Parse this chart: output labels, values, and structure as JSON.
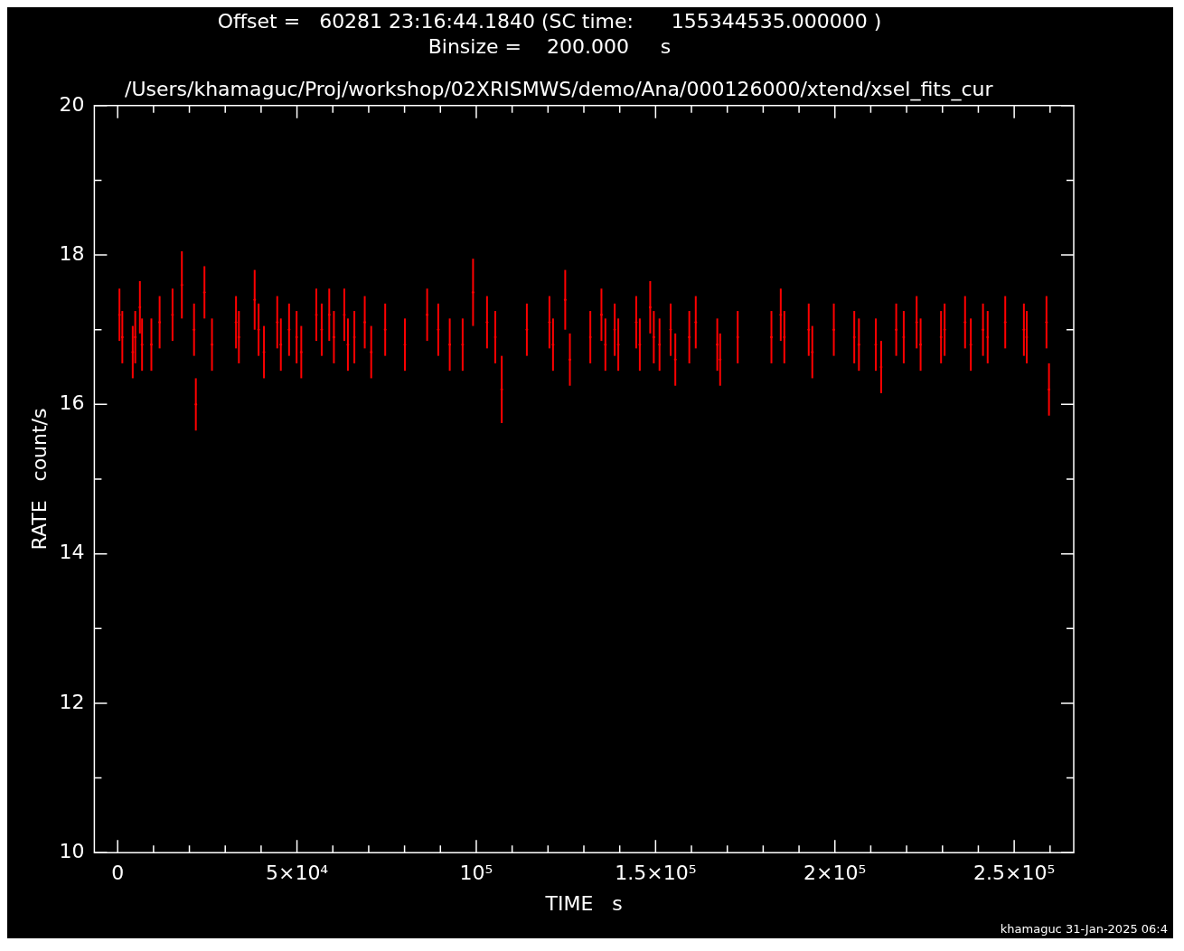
{
  "chart_data": {
    "type": "scatter",
    "title": "Offset =   60281 23:16:44.1840 (SC time:      155344535.000000 )",
    "subtitle": "Binsize =    200.000     s",
    "xlabel": "TIME   s",
    "ylabel": "RATE   count/s",
    "annotations": [
      "/Users/khamaguc/Proj/workshop/02XRISMWS/demo/Ana/000126000/xtend/xsel_fits_cur",
      "khamaguc 31-Jan-2025 06:4"
    ],
    "xlim": [
      -6500,
      266600
    ],
    "ylim": [
      10,
      20
    ],
    "xticks": [
      0,
      {
        "value": 10000,
        "label": null
      },
      {
        "value": 20000,
        "label": null
      },
      {
        "value": 30000,
        "label": null
      },
      {
        "value": 40000,
        "label": null
      },
      {
        "value": 50000,
        "label": "5×10⁴"
      },
      {
        "value": 60000,
        "label": null
      },
      {
        "value": 70000,
        "label": null
      },
      {
        "value": 80000,
        "label": null
      },
      {
        "value": 90000,
        "label": null
      },
      {
        "value": 100000,
        "label": "10⁵"
      },
      {
        "value": 110000,
        "label": null
      },
      {
        "value": 120000,
        "label": null
      },
      {
        "value": 130000,
        "label": null
      },
      {
        "value": 140000,
        "label": null
      },
      {
        "value": 150000,
        "label": "1.5×10⁵"
      },
      {
        "value": 160000,
        "label": null
      },
      {
        "value": 170000,
        "label": null
      },
      {
        "value": 180000,
        "label": null
      },
      {
        "value": 190000,
        "label": null
      },
      {
        "value": 200000,
        "label": "2×10⁵"
      },
      {
        "value": 210000,
        "label": null
      },
      {
        "value": 220000,
        "label": null
      },
      {
        "value": 230000,
        "label": null
      },
      {
        "value": 240000,
        "label": null
      },
      {
        "value": 250000,
        "label": "2.5×10⁵"
      },
      {
        "value": 260000,
        "label": null
      }
    ],
    "yticks": [
      10,
      {
        "value": 11,
        "label": null
      },
      12,
      {
        "value": 13,
        "label": null
      },
      14,
      {
        "value": 15,
        "label": null
      },
      16,
      {
        "value": 17,
        "label": null
      },
      18,
      {
        "value": 19,
        "label": null
      },
      20
    ],
    "series": [
      {
        "color": "#ff0000",
        "x": [
          500,
          1300,
          4200,
          4900,
          6200,
          6800,
          9400,
          11700,
          15300,
          17900,
          21300,
          21800,
          24200,
          26300,
          33000,
          33800,
          38200,
          39300,
          40800,
          44500,
          45500,
          47800,
          49900,
          51200,
          55400,
          56900,
          59000,
          60300,
          63200,
          64200,
          66000,
          68900,
          70700,
          74600,
          80100,
          86300,
          89400,
          92600,
          96200,
          99100,
          103000,
          105300,
          107100,
          114100,
          120400,
          121400,
          124800,
          126100,
          131800,
          134900,
          136000,
          138600,
          139600,
          144600,
          145600,
          148500,
          149500,
          151100,
          154200,
          155500,
          159400,
          161200,
          167200,
          168000,
          172900,
          182300,
          184900,
          185900,
          192700,
          193700,
          199700,
          205400,
          206700,
          211400,
          212900,
          217100,
          219200,
          222800,
          223900,
          229600,
          230600,
          236300,
          237900,
          241300,
          242600,
          247500,
          252700,
          253500,
          259000,
          259700
        ],
        "values": [
          17.2,
          16.9,
          16.7,
          16.9,
          17.3,
          16.8,
          16.8,
          17.1,
          17.2,
          17.6,
          17.0,
          16.0,
          17.5,
          16.8,
          17.1,
          16.9,
          17.4,
          17.0,
          16.7,
          17.1,
          16.8,
          17.0,
          16.9,
          16.7,
          17.2,
          17.0,
          17.2,
          16.9,
          17.2,
          16.8,
          16.9,
          17.1,
          16.7,
          17.0,
          16.8,
          17.2,
          17.0,
          16.8,
          16.8,
          17.5,
          17.1,
          16.9,
          16.2,
          17.0,
          17.1,
          16.8,
          17.4,
          16.6,
          16.9,
          17.2,
          16.8,
          17.0,
          16.8,
          17.1,
          16.8,
          17.3,
          16.9,
          16.8,
          17.0,
          16.6,
          16.9,
          17.1,
          16.8,
          16.6,
          16.9,
          16.9,
          17.2,
          16.9,
          17.0,
          16.7,
          17.0,
          16.9,
          16.8,
          16.8,
          16.5,
          17.0,
          16.9,
          17.1,
          16.8,
          16.9,
          17.0,
          17.1,
          16.8,
          17.0,
          16.9,
          17.1,
          17.0,
          16.9,
          17.1,
          16.2
        ],
        "errors": [
          0.35,
          0.35,
          0.35,
          0.35,
          0.35,
          0.35,
          0.35,
          0.35,
          0.35,
          0.45,
          0.35,
          0.35,
          0.35,
          0.35,
          0.35,
          0.35,
          0.4,
          0.35,
          0.35,
          0.35,
          0.35,
          0.35,
          0.35,
          0.35,
          0.35,
          0.35,
          0.35,
          0.35,
          0.35,
          0.35,
          0.35,
          0.35,
          0.35,
          0.35,
          0.35,
          0.35,
          0.35,
          0.35,
          0.35,
          0.45,
          0.35,
          0.35,
          0.45,
          0.35,
          0.35,
          0.35,
          0.4,
          0.35,
          0.35,
          0.35,
          0.35,
          0.35,
          0.35,
          0.35,
          0.35,
          0.35,
          0.35,
          0.35,
          0.35,
          0.35,
          0.35,
          0.35,
          0.35,
          0.35,
          0.35,
          0.35,
          0.35,
          0.35,
          0.35,
          0.35,
          0.35,
          0.35,
          0.35,
          0.35,
          0.35,
          0.35,
          0.35,
          0.35,
          0.35,
          0.35,
          0.35,
          0.35,
          0.35,
          0.35,
          0.35,
          0.35,
          0.35,
          0.35,
          0.35,
          0.35
        ]
      }
    ]
  }
}
